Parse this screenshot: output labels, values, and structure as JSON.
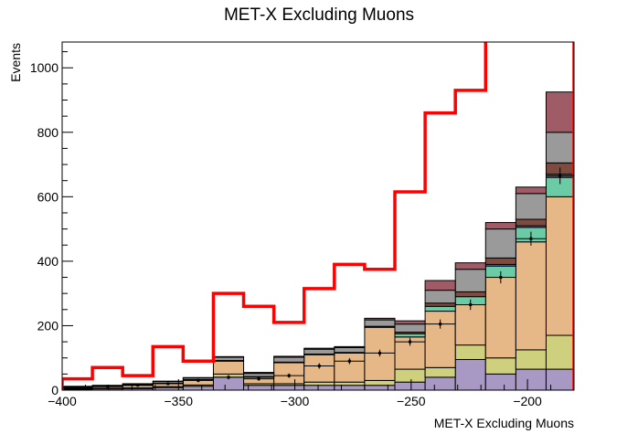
{
  "chart_data": {
    "type": "histogram-stack",
    "title": "MET-X Excluding Muons",
    "xlabel": "MET-X Excluding Muons",
    "ylabel": "Events",
    "xlim": [
      -400,
      -180
    ],
    "ylim": [
      0,
      1080
    ],
    "bin_edges": [
      -400,
      -387,
      -374,
      -361,
      -348,
      -335,
      -322,
      -309,
      -296,
      -283,
      -270,
      -257,
      -244,
      -231,
      -218,
      -205,
      -192,
      -180
    ],
    "x_ticks": [
      -400,
      -350,
      -300,
      -250,
      -200
    ],
    "x_tick_labels": [
      "−400",
      "−350",
      "−300",
      "−250",
      "−200"
    ],
    "y_ticks": [
      0,
      200,
      400,
      600,
      800,
      1000
    ],
    "y_tick_labels": [
      "0",
      "200",
      "400",
      "600",
      "800",
      "1000"
    ],
    "stack": [
      {
        "color": "#a899c4",
        "values": [
          3,
          4,
          5,
          8,
          12,
          40,
          15,
          15,
          15,
          15,
          15,
          25,
          40,
          95,
          50,
          65,
          65
        ]
      },
      {
        "color": "#cfd07e",
        "values": [
          2,
          2,
          2,
          3,
          4,
          10,
          5,
          5,
          10,
          10,
          15,
          40,
          30,
          45,
          50,
          60,
          105
        ]
      },
      {
        "color": "#e6b888",
        "values": [
          3,
          5,
          8,
          10,
          15,
          40,
          20,
          65,
          85,
          90,
          165,
          100,
          175,
          125,
          250,
          335,
          430
        ]
      },
      {
        "color": "#6bcba6",
        "values": [
          0,
          0,
          0,
          0,
          0,
          0,
          0,
          0,
          0,
          0,
          0,
          10,
          15,
          25,
          35,
          45,
          60
        ]
      },
      {
        "color": "#6672b5",
        "values": [
          0,
          0,
          0,
          0,
          0,
          0,
          0,
          0,
          0,
          0,
          0,
          0,
          0,
          0,
          5,
          5,
          10
        ]
      },
      {
        "color": "#7f4b3f",
        "values": [
          1,
          1,
          1,
          1,
          2,
          2,
          2,
          2,
          2,
          2,
          3,
          5,
          10,
          15,
          20,
          20,
          35
        ]
      },
      {
        "color": "#9a9a9a",
        "values": [
          2,
          2,
          3,
          5,
          5,
          10,
          10,
          15,
          15,
          15,
          20,
          25,
          40,
          70,
          90,
          80,
          95
        ]
      },
      {
        "color": "#a05c66",
        "values": [
          1,
          1,
          1,
          1,
          1,
          2,
          3,
          3,
          3,
          3,
          5,
          10,
          30,
          20,
          20,
          20,
          125
        ]
      }
    ],
    "signal": {
      "color": "#ff0000",
      "values": [
        35,
        70,
        45,
        135,
        90,
        300,
        260,
        210,
        315,
        390,
        375,
        615,
        860,
        930,
        1400,
        1400,
        1400
      ]
    },
    "data_points": [
      {
        "x": -393.5,
        "y": 8
      },
      {
        "x": -380.5,
        "y": 12
      },
      {
        "x": -367.5,
        "y": 15
      },
      {
        "x": -354.5,
        "y": 20
      },
      {
        "x": -341.5,
        "y": 30
      },
      {
        "x": -328.5,
        "y": 40
      },
      {
        "x": -315.5,
        "y": 35
      },
      {
        "x": -302.5,
        "y": 45
      },
      {
        "x": -289.5,
        "y": 75
      },
      {
        "x": -276.5,
        "y": 90
      },
      {
        "x": -263.5,
        "y": 115
      },
      {
        "x": -250.5,
        "y": 150
      },
      {
        "x": -237.5,
        "y": 205
      },
      {
        "x": -224.5,
        "y": 265
      },
      {
        "x": -211.5,
        "y": 350
      },
      {
        "x": -198.5,
        "y": 470
      },
      {
        "x": -186,
        "y": 665
      }
    ]
  }
}
